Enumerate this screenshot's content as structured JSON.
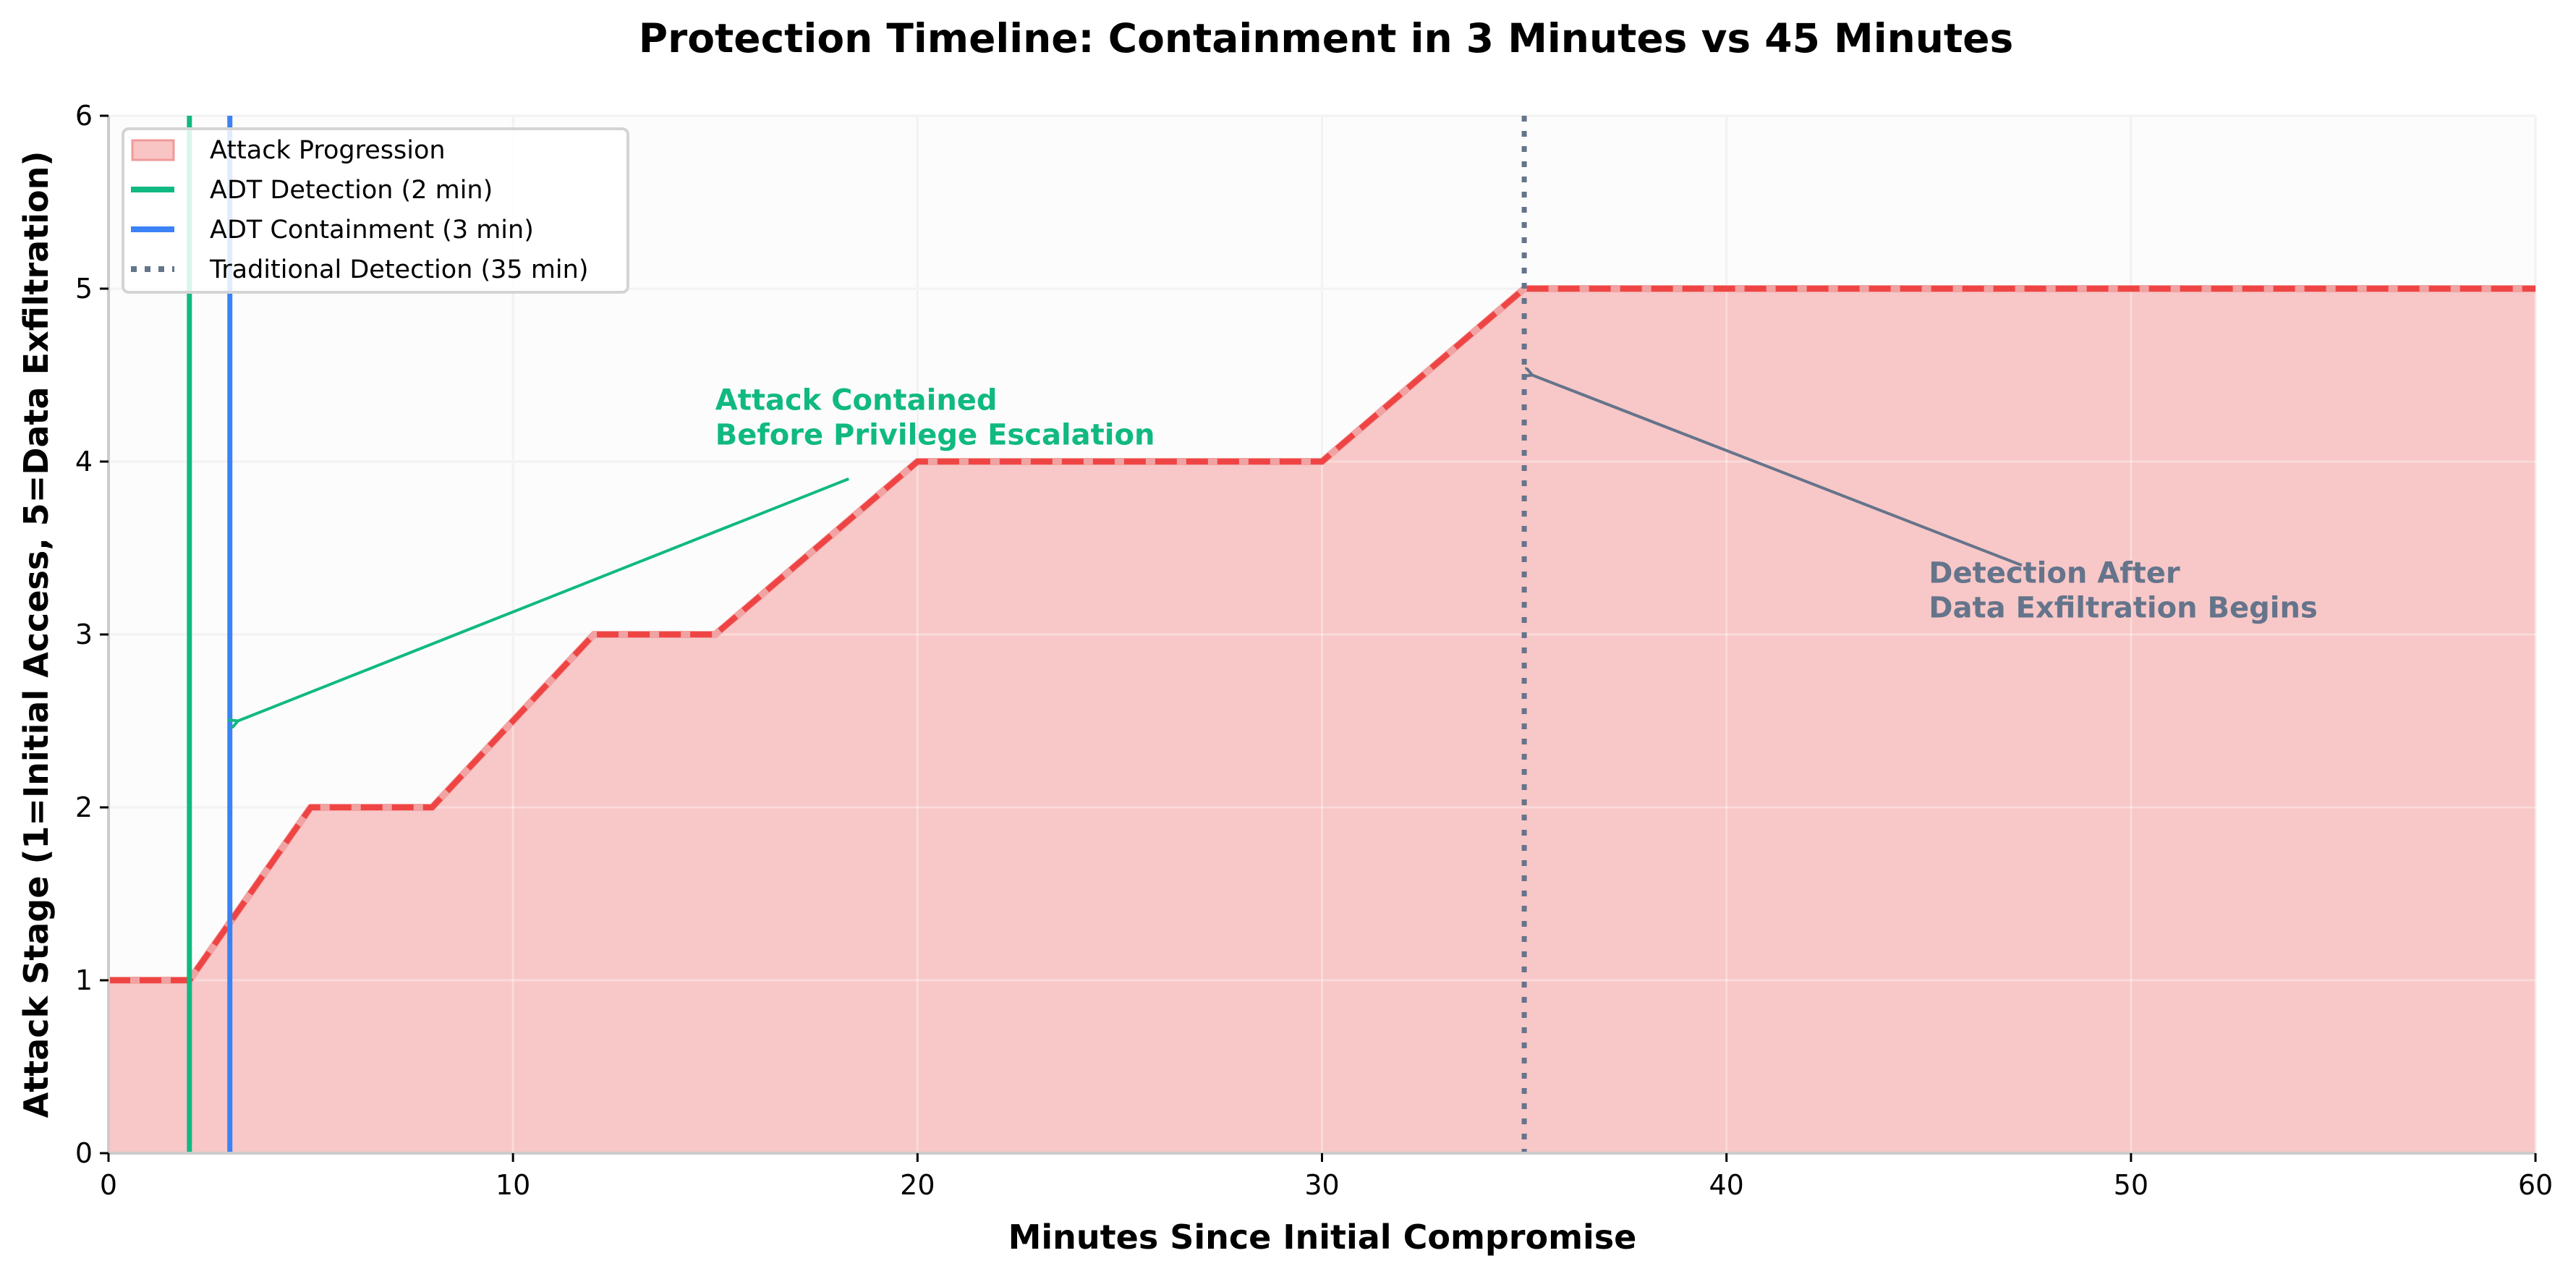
{
  "chart_data": {
    "type": "line",
    "title": "Protection Timeline: Containment in 3 Minutes vs 45 Minutes",
    "xlabel": "Minutes Since Initial Compromise",
    "ylabel": "Attack Stage (1=Initial Access, 5=Data Exfiltration)",
    "xlim": [
      0,
      60
    ],
    "ylim": [
      0,
      6
    ],
    "xticks": [
      0,
      10,
      20,
      30,
      40,
      50,
      60
    ],
    "yticks": [
      0,
      1,
      2,
      3,
      4,
      5,
      6
    ],
    "grid": true,
    "legend_position": "upper left",
    "series": [
      {
        "name": "Attack Progression",
        "kind": "area+dashed-line",
        "color": "#ef4444",
        "fill_color": "#f8c4c4",
        "x": [
          0,
          2,
          5,
          8,
          12,
          15,
          20,
          30,
          35,
          60
        ],
        "y": [
          1,
          1,
          2,
          2,
          3,
          3,
          4,
          4,
          5,
          5
        ]
      }
    ],
    "vlines": [
      {
        "name": "ADT Detection (2 min)",
        "x": 2,
        "color": "#10b981",
        "style": "solid"
      },
      {
        "name": "ADT Containment (3 min)",
        "x": 3,
        "color": "#3b82f6",
        "style": "solid"
      },
      {
        "name": "Traditional Detection (35 min)",
        "x": 35,
        "color": "#64748b",
        "style": "dotted"
      }
    ],
    "legend": [
      {
        "label": "Attack Progression",
        "type": "patch",
        "color": "#f8c4c4",
        "edge": "#f19999"
      },
      {
        "label": "ADT Detection (2 min)",
        "type": "line",
        "color": "#10b981",
        "style": "solid"
      },
      {
        "label": "ADT Containment (3 min)",
        "type": "line",
        "color": "#3b82f6",
        "style": "solid"
      },
      {
        "label": "Traditional Detection (35 min)",
        "type": "line",
        "color": "#64748b",
        "style": "dotted"
      }
    ],
    "annotations": [
      {
        "lines": [
          "Attack Contained",
          "Before Privilege Escalation"
        ],
        "color": "#10b981",
        "text_xy": [
          15,
          4.3
        ],
        "arrow_to": [
          3.2,
          2.5
        ],
        "arrow_from": [
          18.3,
          3.9
        ]
      },
      {
        "lines": [
          "Detection After",
          "Data Exfiltration Begins"
        ],
        "color": "#64748b",
        "text_xy": [
          45,
          3.3
        ],
        "arrow_to": [
          35.2,
          4.5
        ],
        "arrow_from": [
          47.3,
          3.4
        ]
      }
    ]
  }
}
